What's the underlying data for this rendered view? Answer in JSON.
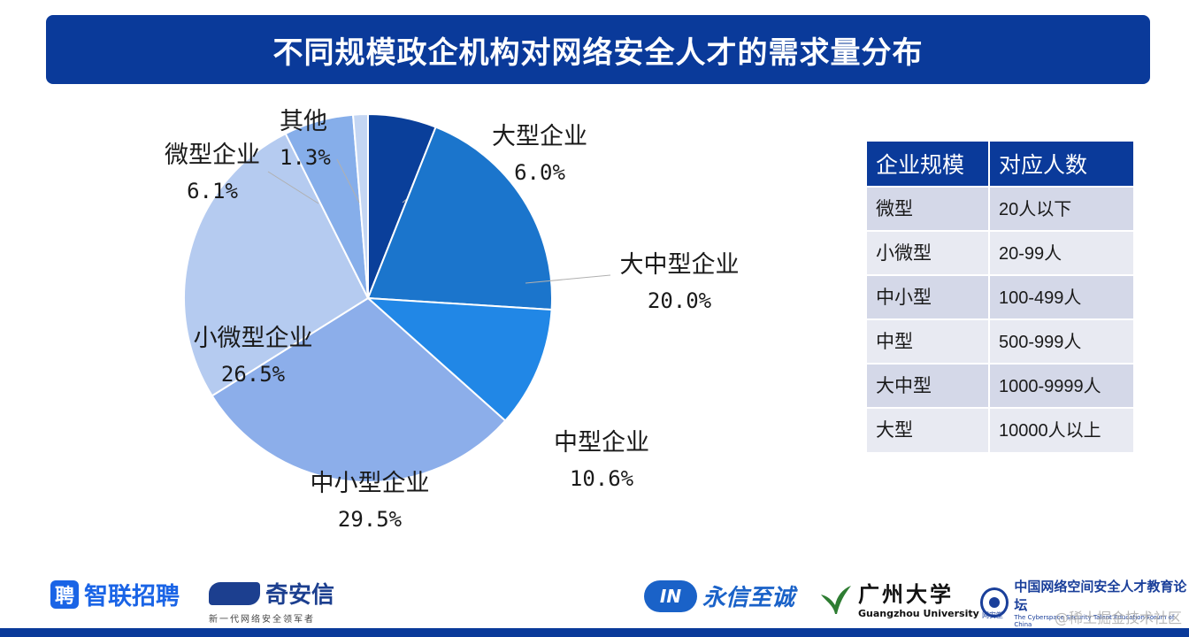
{
  "title": "不同规模政企机构对网络安全人才的需求量分布",
  "chart_data": {
    "type": "pie",
    "title": "不同规模政企机构对网络安全人才的需求量分布",
    "start": "top",
    "direction": "clockwise",
    "slices": [
      {
        "label": "大型企业",
        "value": 6.0,
        "pct_text": "6.0%",
        "color": "#0a3f9a"
      },
      {
        "label": "大中型企业",
        "value": 20.0,
        "pct_text": "20.0%",
        "color": "#1b75cc"
      },
      {
        "label": "中型企业",
        "value": 10.6,
        "pct_text": "10.6%",
        "color": "#2187e6"
      },
      {
        "label": "中小型企业",
        "value": 29.5,
        "pct_text": "29.5%",
        "color": "#8caeea"
      },
      {
        "label": "小微型企业",
        "value": 26.5,
        "pct_text": "26.5%",
        "color": "#b5cbf0"
      },
      {
        "label": "微型企业",
        "value": 6.1,
        "pct_text": "6.1%",
        "color": "#86aeea"
      },
      {
        "label": "其他",
        "value": 1.3,
        "pct_text": "1.3%",
        "color": "#c4d6f3"
      }
    ]
  },
  "table": {
    "headers": [
      "企业规模",
      "对应人数"
    ],
    "rows": [
      [
        "微型",
        "20人以下"
      ],
      [
        "小微型",
        "20-99人"
      ],
      [
        "中小型",
        "100-499人"
      ],
      [
        "中型",
        "500-999人"
      ],
      [
        "大中型",
        "1000-9999人"
      ],
      [
        "大型",
        "10000人以上"
      ]
    ]
  },
  "logos": {
    "zhilian": {
      "badge": "聘",
      "text": "智联招聘"
    },
    "qianxin": {
      "text": "奇安信",
      "sub": "新一代网络安全领军者"
    },
    "yongxin": {
      "mark": "IN",
      "text": "永信至诚"
    },
    "gzhu": {
      "cn": "广州大学",
      "en": "Guangzhou University"
    },
    "forum": {
      "cn": "中国网络空间安全人才教育论坛",
      "en": "The Cyberspace Security Talent Education Forum of China",
      "tag": "网安堂"
    }
  },
  "watermark": "@稀土掘金技术社区"
}
